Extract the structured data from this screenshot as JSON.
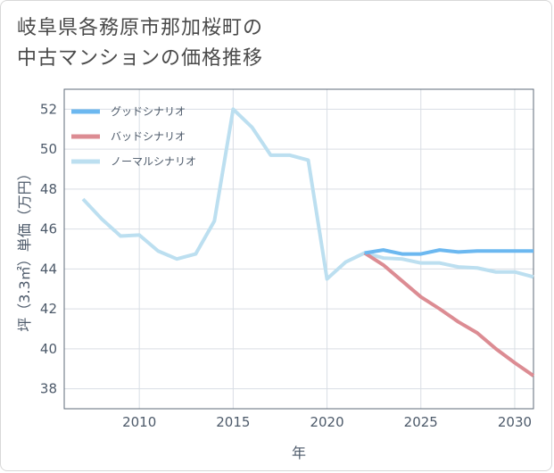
{
  "chart_data": {
    "type": "line",
    "title_lines": [
      "岐阜県各務原市那加桜町の",
      "中古マンションの価格推移"
    ],
    "xlabel": "年",
    "ylabel": "坪（3.3㎡）単価（万円）",
    "xlim": [
      2006,
      2031
    ],
    "ylim": [
      37,
      53
    ],
    "x_ticks": [
      2010,
      2015,
      2020,
      2025,
      2030
    ],
    "y_ticks": [
      38,
      40,
      42,
      44,
      46,
      48,
      50,
      52
    ],
    "grid": true,
    "legend_position": "top-left",
    "series": [
      {
        "name": "グッドシナリオ",
        "color": "#6cb8f0",
        "x": [
          2022,
          2023,
          2024,
          2025,
          2026,
          2027,
          2028,
          2029,
          2030,
          2031
        ],
        "values": [
          44.8,
          44.95,
          44.75,
          44.75,
          44.95,
          44.85,
          44.9,
          44.9,
          44.9,
          44.9
        ]
      },
      {
        "name": "バッドシナリオ",
        "color": "#dc8c93",
        "x": [
          2022,
          2023,
          2024,
          2025,
          2026,
          2027,
          2028,
          2029,
          2030,
          2031
        ],
        "values": [
          44.8,
          44.2,
          43.4,
          42.6,
          42.0,
          41.35,
          40.8,
          40.0,
          39.3,
          38.65
        ]
      },
      {
        "name": "ノーマルシナリオ",
        "color": "#bcdff0",
        "x": [
          2007,
          2008,
          2009,
          2010,
          2011,
          2012,
          2013,
          2014,
          2015,
          2016,
          2017,
          2018,
          2019,
          2020,
          2021,
          2022,
          2023,
          2024,
          2025,
          2026,
          2027,
          2028,
          2029,
          2030,
          2031
        ],
        "values": [
          47.5,
          46.5,
          45.65,
          45.7,
          44.9,
          44.5,
          44.75,
          46.4,
          52.0,
          51.1,
          49.7,
          49.7,
          49.45,
          43.5,
          44.35,
          44.8,
          44.55,
          44.5,
          44.3,
          44.3,
          44.1,
          44.05,
          43.85,
          43.85,
          43.6
        ]
      }
    ]
  }
}
